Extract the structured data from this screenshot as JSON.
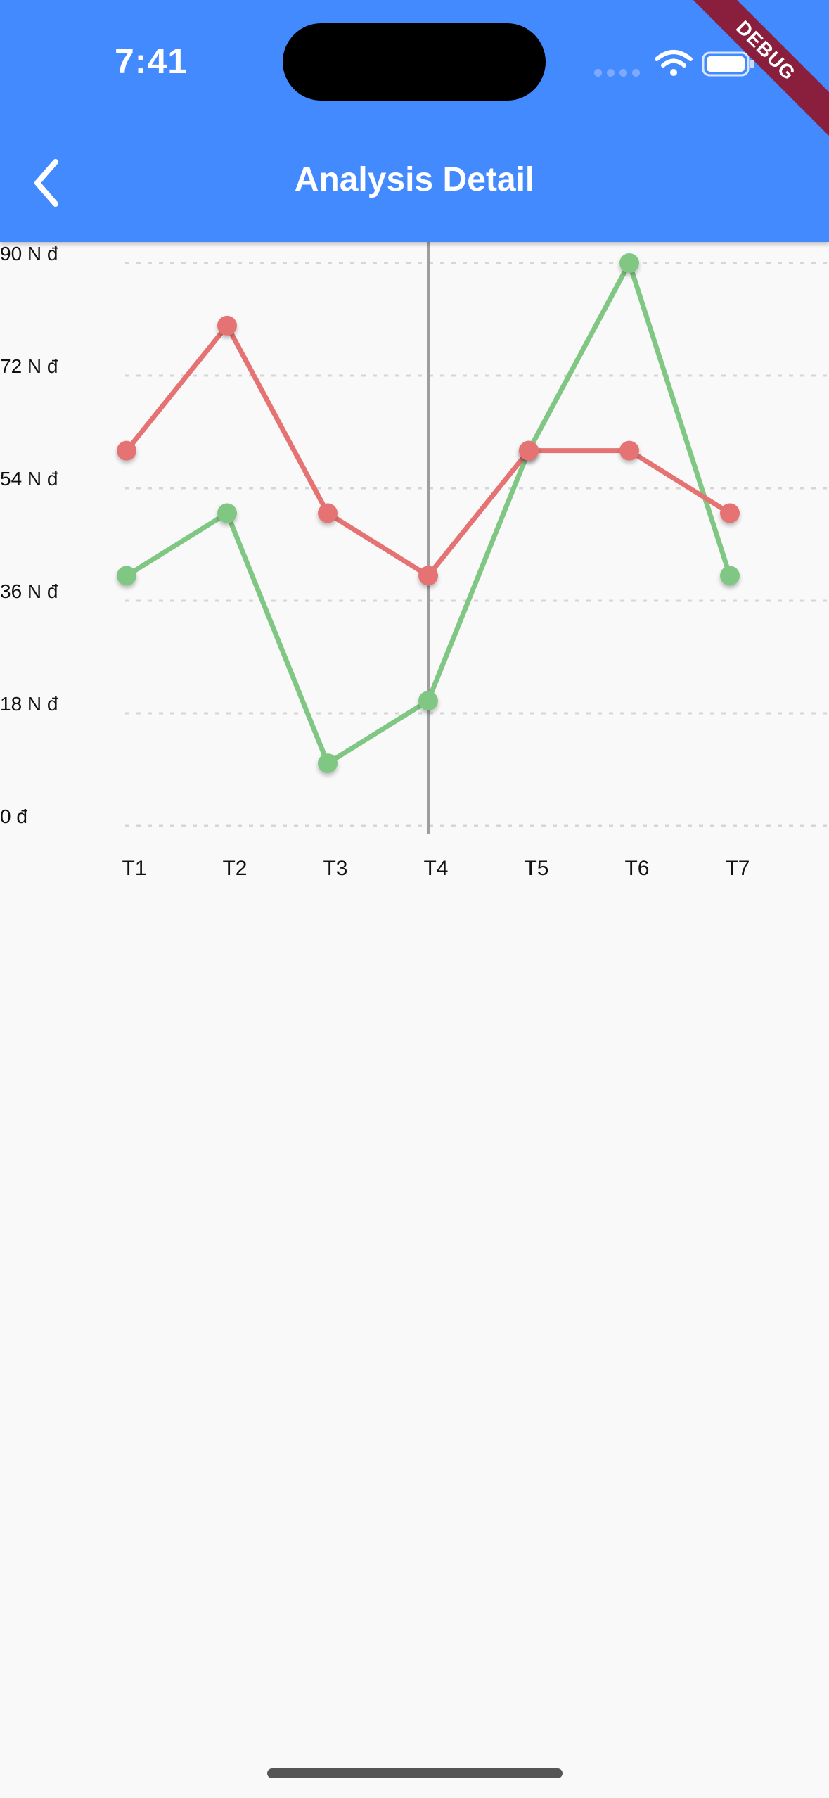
{
  "status": {
    "time": "7:41"
  },
  "debug_banner": "DEBUG",
  "appbar": {
    "title": "Analysis Detail",
    "back_icon": "chevron-left-icon"
  },
  "colors": {
    "appbar": "#448aff",
    "red_series": "#e57373",
    "green_series": "#81c784"
  },
  "chart_data": {
    "type": "line",
    "categories": [
      "T1",
      "T2",
      "T3",
      "T4",
      "T5",
      "T6",
      "T7"
    ],
    "y_tick_labels": [
      "0 đ",
      "18 N đ",
      "36 N đ",
      "54 N đ",
      "72 N đ",
      "90 N đ"
    ],
    "y_ticks": [
      0,
      18,
      36,
      54,
      72,
      90
    ],
    "ylim": [
      0,
      90
    ],
    "grid": "horizontal dashed",
    "highlighted_category": "T4",
    "series": [
      {
        "color": "#e57373",
        "values": [
          60,
          80,
          50,
          40,
          60,
          60,
          50
        ]
      },
      {
        "color": "#81c784",
        "values": [
          40,
          50,
          10,
          20,
          60,
          90,
          40
        ]
      }
    ]
  }
}
